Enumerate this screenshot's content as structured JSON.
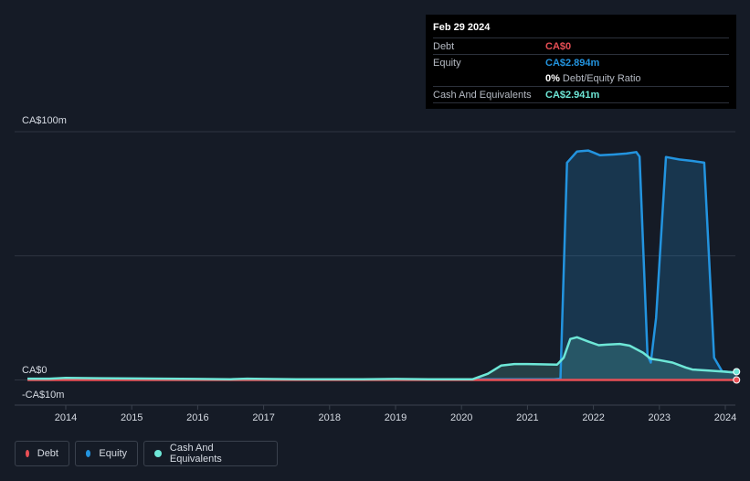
{
  "tooltip": {
    "date": "Feb 29 2024",
    "debt_label": "Debt",
    "debt_value": "CA$0",
    "equity_label": "Equity",
    "equity_value": "CA$2.894m",
    "ratio_value": "0%",
    "ratio_label": "Debt/Equity Ratio",
    "cash_label": "Cash And Equivalents",
    "cash_value": "CA$2.941m"
  },
  "legend": {
    "debt": "Debt",
    "equity": "Equity",
    "cash": "Cash And Equivalents"
  },
  "colors": {
    "debt": "#e84f55",
    "equity": "#2394df",
    "cash": "#6ee7d7",
    "background": "#151b26",
    "tooltip_bg": "#000000"
  },
  "chart_data": {
    "type": "area",
    "y_unit": "CA$ millions",
    "ylim": [
      -10,
      100
    ],
    "xlim": [
      2013.3,
      2024.17
    ],
    "y_tick_labels": [
      {
        "value": 100,
        "label": "CA$100m"
      },
      {
        "value": 0,
        "label": "CA$0"
      },
      {
        "value": -10,
        "label": "-CA$10m"
      }
    ],
    "gridlines": [
      100,
      50,
      0
    ],
    "x_ticks": [
      2014,
      2015,
      2016,
      2017,
      2018,
      2019,
      2020,
      2021,
      2022,
      2023,
      2024
    ],
    "series": [
      {
        "name": "Equity",
        "key": "equity",
        "points": [
          [
            2013.42,
            0.4
          ],
          [
            2013.5,
            0.4
          ],
          [
            2013.75,
            0.4
          ],
          [
            2014.0,
            0.7
          ],
          [
            2014.5,
            0.6
          ],
          [
            2015.0,
            0.5
          ],
          [
            2015.5,
            0.4
          ],
          [
            2016.0,
            0.3
          ],
          [
            2016.5,
            0.2
          ],
          [
            2016.75,
            0.4
          ],
          [
            2017.0,
            0.2
          ],
          [
            2017.5,
            0.2
          ],
          [
            2018.0,
            0.2
          ],
          [
            2018.5,
            0.2
          ],
          [
            2019.0,
            0.3
          ],
          [
            2019.5,
            0.2
          ],
          [
            2020.0,
            0.2
          ],
          [
            2020.17,
            0.3
          ],
          [
            2020.4,
            0.3
          ],
          [
            2020.65,
            0.3
          ],
          [
            2021.0,
            0.3
          ],
          [
            2021.4,
            0.3
          ],
          [
            2021.5,
            0.5
          ],
          [
            2021.6,
            87.5
          ],
          [
            2021.75,
            92.0
          ],
          [
            2021.92,
            92.4
          ],
          [
            2022.0,
            91.6
          ],
          [
            2022.1,
            90.5
          ],
          [
            2022.3,
            90.8
          ],
          [
            2022.5,
            91.2
          ],
          [
            2022.65,
            91.8
          ],
          [
            2022.7,
            90.0
          ],
          [
            2022.82,
            10.0
          ],
          [
            2022.87,
            7.0
          ],
          [
            2022.95,
            25.0
          ],
          [
            2023.1,
            89.8
          ],
          [
            2023.3,
            88.8
          ],
          [
            2023.5,
            88.2
          ],
          [
            2023.68,
            87.5
          ],
          [
            2023.83,
            9.0
          ],
          [
            2023.95,
            3.5
          ],
          [
            2024.17,
            2.894
          ]
        ]
      },
      {
        "name": "Cash And Equivalents",
        "key": "cash",
        "points": [
          [
            2013.42,
            0.5
          ],
          [
            2013.75,
            0.5
          ],
          [
            2014.0,
            0.8
          ],
          [
            2014.5,
            0.7
          ],
          [
            2015.0,
            0.6
          ],
          [
            2015.5,
            0.5
          ],
          [
            2016.0,
            0.4
          ],
          [
            2016.5,
            0.3
          ],
          [
            2016.75,
            0.5
          ],
          [
            2017.0,
            0.4
          ],
          [
            2017.5,
            0.3
          ],
          [
            2018.0,
            0.3
          ],
          [
            2018.5,
            0.3
          ],
          [
            2019.0,
            0.4
          ],
          [
            2019.5,
            0.3
          ],
          [
            2020.0,
            0.3
          ],
          [
            2020.17,
            0.3
          ],
          [
            2020.4,
            2.5
          ],
          [
            2020.6,
            5.8
          ],
          [
            2020.8,
            6.4
          ],
          [
            2021.0,
            6.4
          ],
          [
            2021.2,
            6.3
          ],
          [
            2021.45,
            6.2
          ],
          [
            2021.55,
            9.0
          ],
          [
            2021.65,
            16.5
          ],
          [
            2021.75,
            17.2
          ],
          [
            2021.92,
            15.5
          ],
          [
            2022.08,
            14.0
          ],
          [
            2022.2,
            14.2
          ],
          [
            2022.4,
            14.5
          ],
          [
            2022.55,
            13.8
          ],
          [
            2022.75,
            11.0
          ],
          [
            2022.87,
            8.5
          ],
          [
            2023.0,
            8.0
          ],
          [
            2023.2,
            7.0
          ],
          [
            2023.4,
            5.0
          ],
          [
            2023.5,
            4.2
          ],
          [
            2023.75,
            3.8
          ],
          [
            2024.0,
            3.3
          ],
          [
            2024.17,
            2.941
          ]
        ]
      },
      {
        "name": "Debt",
        "key": "debt",
        "points": [
          [
            2013.42,
            0
          ],
          [
            2020.17,
            0
          ],
          [
            2024.17,
            0
          ]
        ]
      }
    ]
  }
}
